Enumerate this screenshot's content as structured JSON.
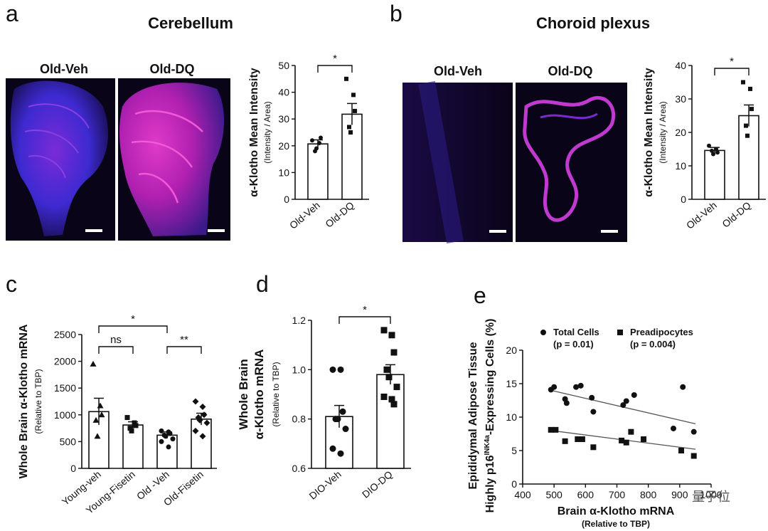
{
  "panels": {
    "a": {
      "letter": "a",
      "title": "Cerebellum",
      "img_left": "Old-Veh",
      "img_right": "Old-DQ"
    },
    "b": {
      "letter": "b",
      "title": "Choroid plexus",
      "img_left": "Old-Veh",
      "img_right": "Old-DQ"
    },
    "c": {
      "letter": "c"
    },
    "d": {
      "letter": "d"
    },
    "e": {
      "letter": "e"
    }
  },
  "watermark": "量子位",
  "colors": {
    "micro_bg": "#0a0418",
    "micro_blue": "#3a2fd0",
    "micro_magenta": "#d81fb0",
    "scale_bar": "#ffffff"
  },
  "chart_data": [
    {
      "id": "a_bar",
      "type": "bar",
      "categories": [
        "Old-Veh",
        "Old-DQ"
      ],
      "values": [
        20.7,
        31.8
      ],
      "errors": [
        1.5,
        4.0
      ],
      "points": [
        [
          22,
          21,
          23,
          18,
          19
        ],
        [
          45,
          39,
          33,
          27,
          25
        ]
      ],
      "ylabel": "α-Klotho Mean Intensity",
      "ylabel2": "(Intensity / Area)",
      "ylim": [
        0,
        50
      ],
      "yticks": [
        0,
        10,
        20,
        30,
        40,
        50
      ],
      "significance": [
        {
          "from": 0,
          "to": 1,
          "label": "*"
        }
      ]
    },
    {
      "id": "b_bar",
      "type": "bar",
      "categories": [
        "Old-Veh",
        "Old-DQ"
      ],
      "values": [
        14.6,
        25.0
      ],
      "errors": [
        0.9,
        3.2
      ],
      "points": [
        [
          16,
          15,
          14,
          14.5,
          13.5
        ],
        [
          35,
          33,
          27,
          22,
          19
        ]
      ],
      "ylabel": "α-Klotho Mean Intensity",
      "ylabel2": "(Intensity / Area)",
      "ylim": [
        0,
        40
      ],
      "yticks": [
        0,
        10,
        20,
        30,
        40
      ],
      "significance": [
        {
          "from": 0,
          "to": 1,
          "label": "*"
        }
      ]
    },
    {
      "id": "c_bar",
      "type": "bar",
      "categories": [
        "Young-veh",
        "Young-Fisetin",
        "Old -Veh",
        "Old-Fisetin"
      ],
      "values": [
        1060,
        810,
        620,
        920
      ],
      "errors": [
        250,
        60,
        60,
        110
      ],
      "points": [
        [
          1950,
          1170,
          1000,
          900,
          600
        ],
        [
          950,
          850,
          800,
          750,
          700
        ],
        [
          700,
          680,
          650,
          620,
          600,
          550,
          500,
          400
        ],
        [
          1250,
          1150,
          1000,
          950,
          900,
          850,
          700,
          600
        ]
      ],
      "ylabel": "Whole Brain α-Klotho mRNA",
      "ylabel2": "(Relative to TBP)",
      "ylim": [
        0,
        2500
      ],
      "yticks": [
        0,
        500,
        1000,
        1500,
        2000,
        2500
      ],
      "significance": [
        {
          "from": 0,
          "to": 1,
          "label": "ns"
        },
        {
          "from": 0,
          "to": 2,
          "label": "*"
        },
        {
          "from": 2,
          "to": 3,
          "label": "**"
        }
      ]
    },
    {
      "id": "d_bar",
      "type": "bar",
      "categories": [
        "DIO-Veh",
        "DIO-DQ"
      ],
      "values": [
        0.81,
        0.98
      ],
      "errors": [
        0.045,
        0.04
      ],
      "points": [
        [
          1.0,
          1.0,
          0.83,
          0.8,
          0.8,
          0.76,
          0.68,
          0.66
        ],
        [
          1.16,
          1.14,
          1.07,
          1.0,
          0.97,
          0.93,
          0.89,
          0.88,
          0.86
        ]
      ],
      "ylabel": "Whole Brain",
      "ylabel2": "α-Klotho mRNA",
      "ylabel3": "(Relative to TBP)",
      "ylim": [
        0.6,
        1.2
      ],
      "yticks": [
        0.6,
        0.8,
        1.0,
        1.2
      ],
      "ytick_labels": [
        "0.6",
        "0.8",
        "1.0",
        "1.2"
      ],
      "significance": [
        {
          "from": 0,
          "to": 1,
          "label": "*"
        }
      ]
    },
    {
      "id": "e_scatter",
      "type": "scatter",
      "xlabel": "Brain α-Klotho mRNA",
      "xlabel2": "(Relative to TBP)",
      "ylabel": "Epididymal Adipose Tissue",
      "ylabel2_pre": "Highly p16",
      "ylabel2_sup": "INK4a",
      "ylabel2_post": "-Expressing Cells (%)",
      "xlim": [
        400,
        1000
      ],
      "ylim": [
        0,
        20
      ],
      "xticks": [
        400,
        500,
        600,
        700,
        800,
        900,
        1000
      ],
      "yticks": [
        0,
        5,
        10,
        15,
        20
      ],
      "series": [
        {
          "name": "Total Cells",
          "pvalue": "(p = 0.01)",
          "marker": "circle",
          "x": [
            490,
            500,
            535,
            540,
            570,
            585,
            620,
            625,
            720,
            730,
            755,
            880,
            910,
            945
          ],
          "y": [
            14.1,
            14.5,
            12.7,
            12.1,
            14.5,
            14.7,
            12.9,
            10.8,
            11.8,
            12.4,
            13.3,
            8.3,
            14.5,
            7.8
          ],
          "fit": [
            [
              490,
              14.0
            ],
            [
              950,
              9.0
            ]
          ]
        },
        {
          "name": "Preadipocytes",
          "pvalue": "(p = 0.004)",
          "marker": "square",
          "x": [
            490,
            505,
            535,
            575,
            590,
            625,
            715,
            730,
            745,
            785,
            905,
            945
          ],
          "y": [
            8.1,
            8.1,
            6.4,
            6.7,
            6.7,
            5.5,
            6.5,
            6.2,
            7.8,
            6.7,
            5.0,
            4.2
          ],
          "fit": [
            [
              490,
              8.0
            ],
            [
              950,
              5.2
            ]
          ]
        }
      ]
    }
  ]
}
